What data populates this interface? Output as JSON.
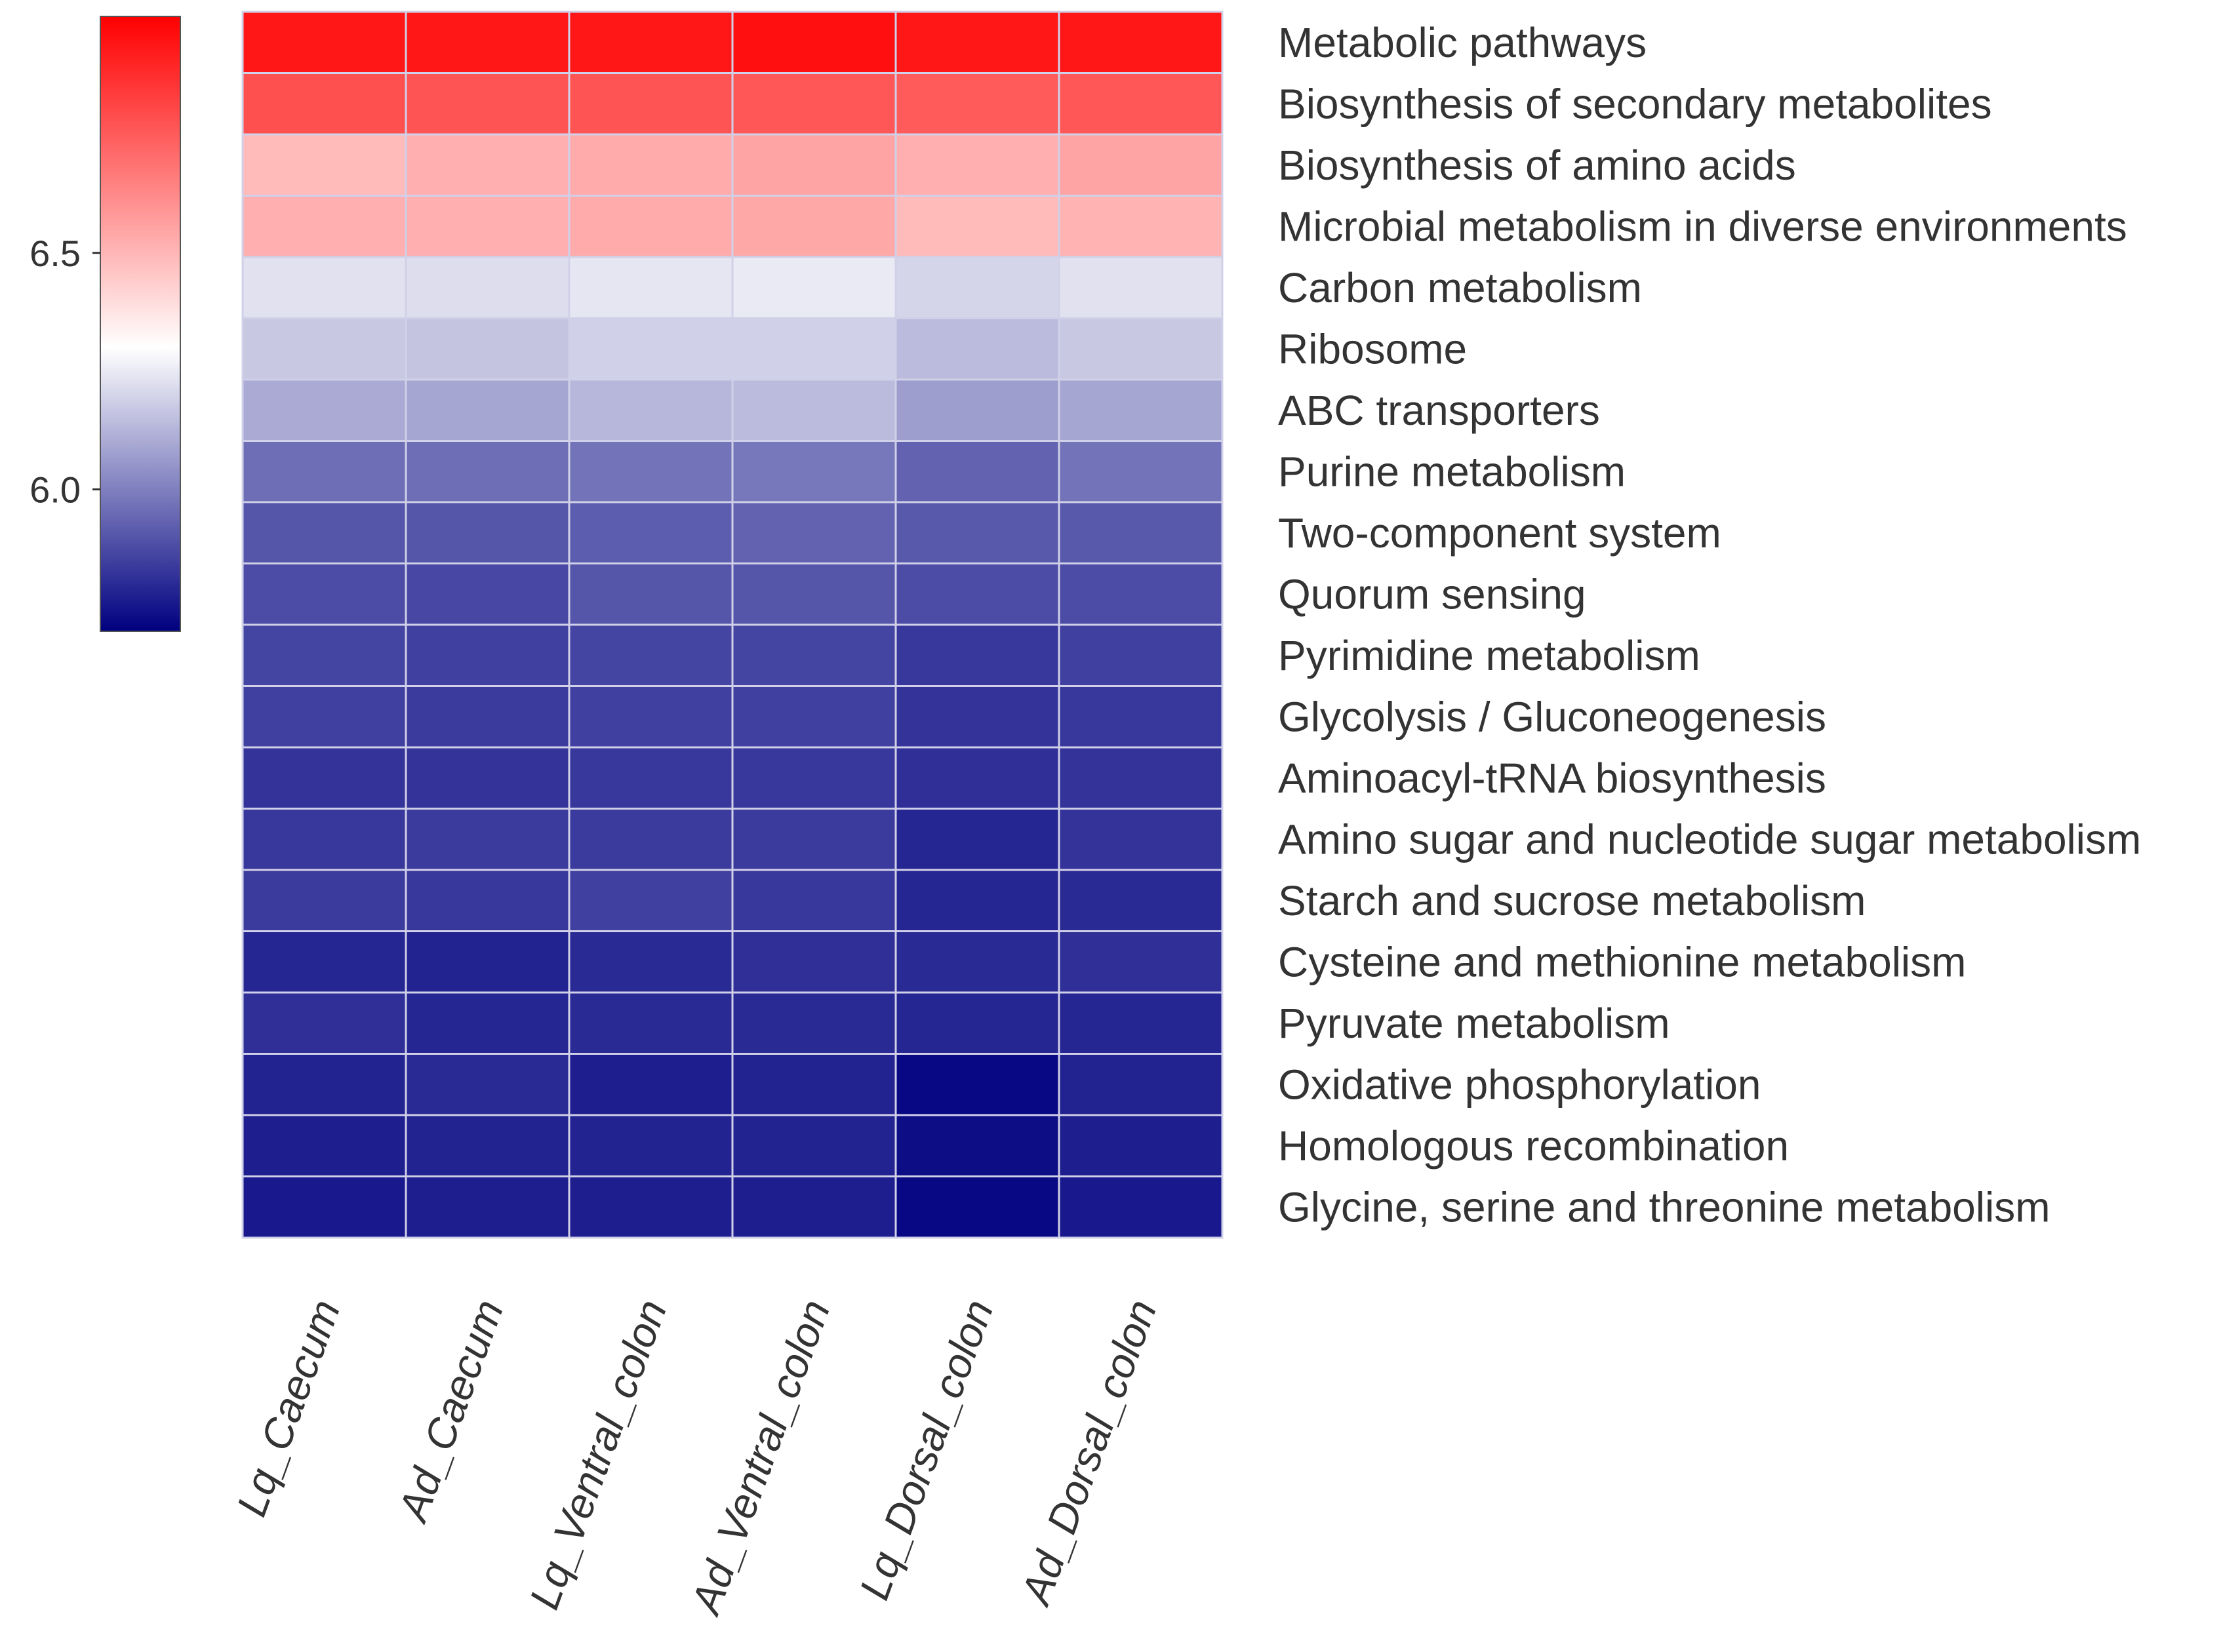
{
  "chart_data": {
    "type": "heatmap",
    "title": "",
    "xlabel": "",
    "ylabel": "",
    "columns": [
      "Lq_Caecum",
      "Ad_Caecum",
      "Lq_Ventral_colon",
      "Ad_Ventral_colon",
      "Lq_Dorsal_colon",
      "Ad_Dorsal_colon"
    ],
    "rows": [
      "Metabolic pathways",
      "Biosynthesis of secondary metabolites",
      "Biosynthesis of amino acids",
      "Microbial metabolism in diverse environments",
      "Carbon metabolism",
      "Ribosome",
      "ABC transporters",
      "Purine metabolism",
      "Two-component system",
      "Quorum sensing",
      "Pyrimidine metabolism",
      "Glycolysis / Gluconeogenesis",
      "Aminoacyl-tRNA biosynthesis",
      "Amino sugar and nucleotide sugar metabolism",
      "Starch and sucrose metabolism",
      "Cysteine and methionine metabolism",
      "Pyruvate metabolism",
      "Oxidative phosphorylation",
      "Homologous recombination",
      "Glycine, serine and threonine metabolism"
    ],
    "values": [
      [
        6.94,
        6.94,
        6.94,
        6.96,
        6.94,
        6.94
      ],
      [
        6.78,
        6.77,
        6.77,
        6.76,
        6.75,
        6.76
      ],
      [
        6.49,
        6.52,
        6.53,
        6.55,
        6.52,
        6.55
      ],
      [
        6.52,
        6.52,
        6.53,
        6.54,
        6.49,
        6.51
      ],
      [
        6.23,
        6.22,
        6.24,
        6.25,
        6.2,
        6.23
      ],
      [
        6.17,
        6.16,
        6.19,
        6.19,
        6.14,
        6.17
      ],
      [
        6.1,
        6.09,
        6.13,
        6.14,
        6.07,
        6.09
      ],
      [
        5.96,
        5.96,
        5.97,
        5.98,
        5.93,
        5.97
      ],
      [
        5.9,
        5.9,
        5.92,
        5.93,
        5.91,
        5.91
      ],
      [
        5.88,
        5.87,
        5.9,
        5.9,
        5.88,
        5.88
      ],
      [
        5.86,
        5.85,
        5.86,
        5.86,
        5.83,
        5.85
      ],
      [
        5.85,
        5.84,
        5.85,
        5.85,
        5.82,
        5.83
      ],
      [
        5.82,
        5.82,
        5.83,
        5.83,
        5.81,
        5.82
      ],
      [
        5.83,
        5.84,
        5.84,
        5.84,
        5.79,
        5.82
      ],
      [
        5.84,
        5.83,
        5.85,
        5.83,
        5.79,
        5.8
      ],
      [
        5.79,
        5.78,
        5.8,
        5.81,
        5.8,
        5.81
      ],
      [
        5.81,
        5.79,
        5.8,
        5.8,
        5.79,
        5.79
      ],
      [
        5.78,
        5.8,
        5.77,
        5.78,
        5.72,
        5.78
      ],
      [
        5.77,
        5.78,
        5.78,
        5.78,
        5.73,
        5.77
      ],
      [
        5.76,
        5.77,
        5.77,
        5.77,
        5.72,
        5.76
      ]
    ],
    "color_scale": {
      "min": 5.7,
      "mid": 6.3,
      "max": 7.0,
      "low_color": "#000080",
      "mid_color": "#ffffff",
      "high_color": "#ff0000"
    },
    "legend": {
      "position": "left",
      "ticks": [
        6.0,
        6.5
      ],
      "tick_labels": [
        "6.0",
        "6.5"
      ]
    },
    "grid_color": "#d0d0e8"
  }
}
